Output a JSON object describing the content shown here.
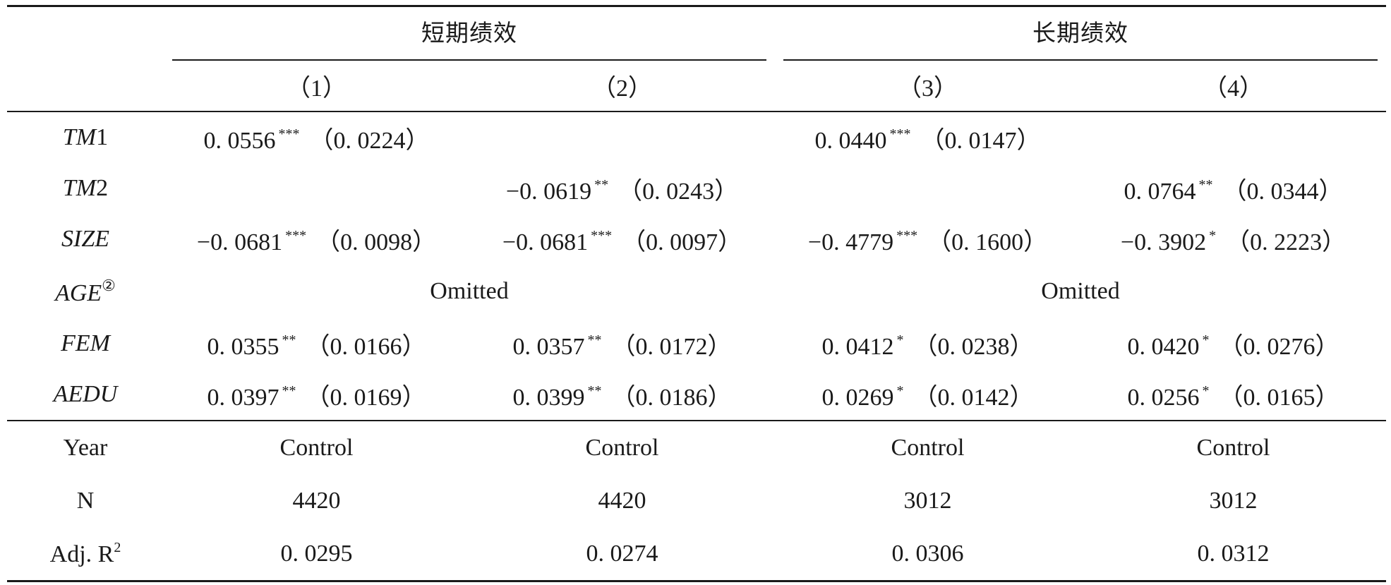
{
  "header": {
    "group_short": "短期绩效",
    "group_long": "长期绩效",
    "columns": [
      "（1）",
      "（2）",
      "（3）",
      "（4）"
    ]
  },
  "rows": [
    {
      "label_main": "TM",
      "label_rest": "1",
      "cells": [
        {
          "coef": "0. 0556",
          "stars": "***",
          "se": "（0. 0224）"
        },
        null,
        {
          "coef": "0. 0440",
          "stars": "***",
          "se": "（0. 0147）"
        },
        null
      ]
    },
    {
      "label_main": "TM",
      "label_rest": "2",
      "cells": [
        null,
        {
          "coef": "−0. 0619",
          "stars": "**",
          "se": "（0. 0243）"
        },
        null,
        {
          "coef": "0. 0764",
          "stars": "**",
          "se": "（0. 0344）"
        }
      ]
    },
    {
      "label_main": "SIZE",
      "label_rest": "",
      "cells": [
        {
          "coef": "−0. 0681",
          "stars": "***",
          "se": "（0. 0098）"
        },
        {
          "coef": "−0. 0681",
          "stars": "***",
          "se": "（0. 0097）"
        },
        {
          "coef": "−0. 4779",
          "stars": "***",
          "se": "（0. 1600）"
        },
        {
          "coef": "−0. 3902",
          "stars": "*",
          "se": "（0. 2223）"
        }
      ]
    },
    {
      "label_main": "FEM",
      "label_rest": "",
      "cells": [
        {
          "coef": "0. 0355",
          "stars": "**",
          "se": "（0. 0166）"
        },
        {
          "coef": "0. 0357",
          "stars": "**",
          "se": "（0. 0172）"
        },
        {
          "coef": "0. 0412",
          "stars": "*",
          "se": "（0. 0238）"
        },
        {
          "coef": "0. 0420",
          "stars": "*",
          "se": "（0. 0276）"
        }
      ]
    },
    {
      "label_main": "AEDU",
      "label_rest": "",
      "cells": [
        {
          "coef": "0. 0397",
          "stars": "**",
          "se": "（0. 0169）"
        },
        {
          "coef": "0. 0399",
          "stars": "**",
          "se": "（0. 0186）"
        },
        {
          "coef": "0. 0269",
          "stars": "*",
          "se": "（0. 0142）"
        },
        {
          "coef": "0. 0256",
          "stars": "*",
          "se": "（0. 0165）"
        }
      ]
    }
  ],
  "age_row": {
    "label": "AGE",
    "note_mark": "②",
    "short_value": "Omitted",
    "long_value": "Omitted"
  },
  "stats": {
    "year": {
      "label": "Year",
      "values": [
        "Control",
        "Control",
        "Control",
        "Control"
      ]
    },
    "n": {
      "label": "N",
      "values": [
        "4420",
        "4420",
        "3012",
        "3012"
      ]
    },
    "r2": {
      "label_base": "Adj. R",
      "label_sup": "2",
      "values": [
        "0. 0295",
        "0. 0274",
        "0. 0306",
        "0. 0312"
      ]
    }
  }
}
